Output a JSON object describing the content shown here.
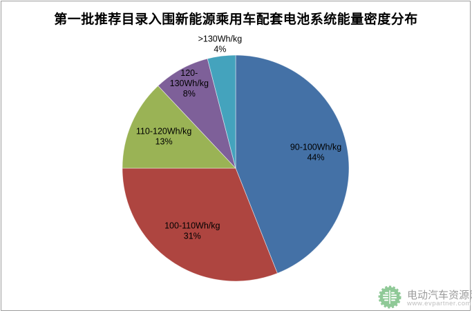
{
  "chart_data": {
    "type": "pie",
    "title": "第一批推荐目录入围新能源乘用车配套电池系统能量密度分布",
    "unit": "Wh/kg",
    "start_angle_deg": 0,
    "direction": "clockwise",
    "background": "#FFFFFF",
    "label_color": "#000000",
    "legend": "none",
    "slices": [
      {
        "label": "90-100Wh/kg",
        "value": 44,
        "pct_label": "44%",
        "color": "#4471A6",
        "label_position": "inside",
        "label_lines": [
          "90-100Wh/kg",
          "44%"
        ]
      },
      {
        "label": "100-110Wh/kg",
        "value": 31,
        "pct_label": "31%",
        "color": "#AE4540",
        "label_position": "inside",
        "label_lines": [
          "100-110Wh/kg",
          "31%"
        ]
      },
      {
        "label": "110-120Wh/kg",
        "value": 13,
        "pct_label": "13%",
        "color": "#9AB355",
        "label_position": "inside",
        "label_lines": [
          "110-120Wh/kg",
          "13%"
        ]
      },
      {
        "label": "120-130Wh/kg",
        "value": 8,
        "pct_label": "8%",
        "color": "#7E6099",
        "label_position": "inside",
        "label_lines": [
          "120-",
          "130Wh/kg",
          "8%"
        ]
      },
      {
        "label": ">130Wh/kg",
        "value": 4,
        "pct_label": "4%",
        "color": "#44A3BD",
        "label_position": "outside",
        "label_lines": [
          ">130Wh/kg",
          "4%"
        ]
      }
    ]
  },
  "watermark": {
    "site_name": "电动汽车资源网",
    "site_url": "www.evpartner.com",
    "logo_color": "#8FC997",
    "name_color": "#9B9B9B",
    "url_color": "#BDBDBD"
  },
  "frame": {
    "border_color": "#9C9C9C"
  }
}
